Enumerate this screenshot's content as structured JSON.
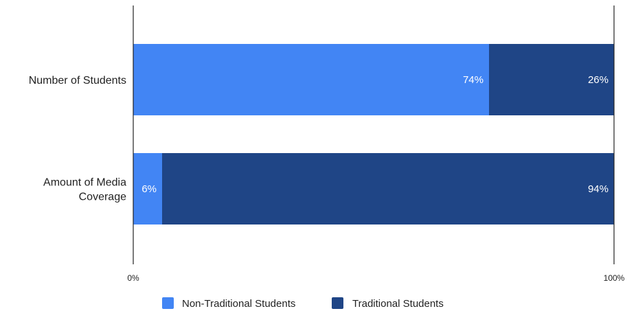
{
  "chart_data": {
    "type": "bar",
    "orientation": "horizontal",
    "stacked": "percent",
    "categories": [
      "Number of Students",
      "Amount of Media Coverage"
    ],
    "category_lines": [
      [
        "Number of Students"
      ],
      [
        "Amount of Media",
        "Coverage"
      ]
    ],
    "series": [
      {
        "name": "Non-Traditional Students",
        "color": "#4285f4",
        "values": [
          74,
          6
        ],
        "labels": [
          "74%",
          "6%"
        ]
      },
      {
        "name": "Traditional Students",
        "color": "#1f4586",
        "values": [
          26,
          94
        ],
        "labels": [
          "26%",
          "94%"
        ]
      }
    ],
    "xlim": [
      0,
      100
    ],
    "x_ticks": [
      "0%",
      "100%"
    ],
    "grid": false,
    "legend": {
      "position": "bottom"
    }
  }
}
